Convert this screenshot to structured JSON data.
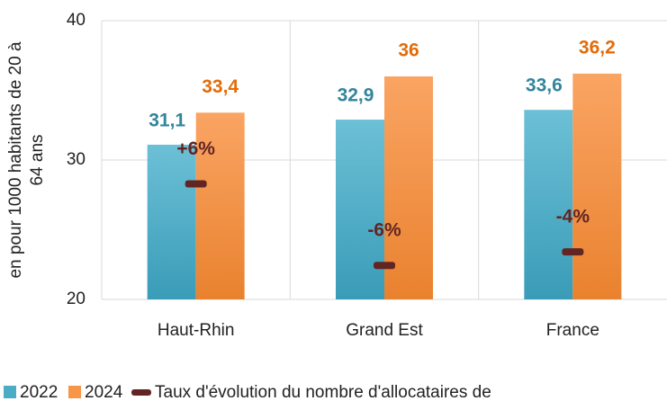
{
  "chart_data": {
    "type": "bar",
    "y_label": [
      "en pour 1000 habitants de 20 à",
      "64 ans"
    ],
    "categories": [
      "Haut-Rhin",
      "Grand Est",
      "France"
    ],
    "series": [
      {
        "name": "2022",
        "color": "#4bacc6",
        "label_color": "#31859c",
        "values": [
          31.1,
          32.9,
          33.6
        ],
        "value_labels": [
          "31,1",
          "32,9",
          "33,6"
        ]
      },
      {
        "name": "2024",
        "color": "#f79646",
        "label_color": "#e36c09",
        "values": [
          33.4,
          36,
          36.2
        ],
        "value_labels": [
          "33,4",
          "36",
          "36,2"
        ]
      },
      {
        "name": "Taux d'évolution du nombre d'allocataires de",
        "type": "marker",
        "axis": "y2",
        "color": "#632523",
        "values": [
          6,
          -6,
          -4
        ],
        "value_labels": [
          "+6%",
          "-6%",
          "-4%"
        ]
      }
    ],
    "ylim": [
      20,
      40
    ],
    "yticks": [
      20,
      30,
      40
    ],
    "y2lim": [
      -11,
      30
    ],
    "grid": true
  }
}
